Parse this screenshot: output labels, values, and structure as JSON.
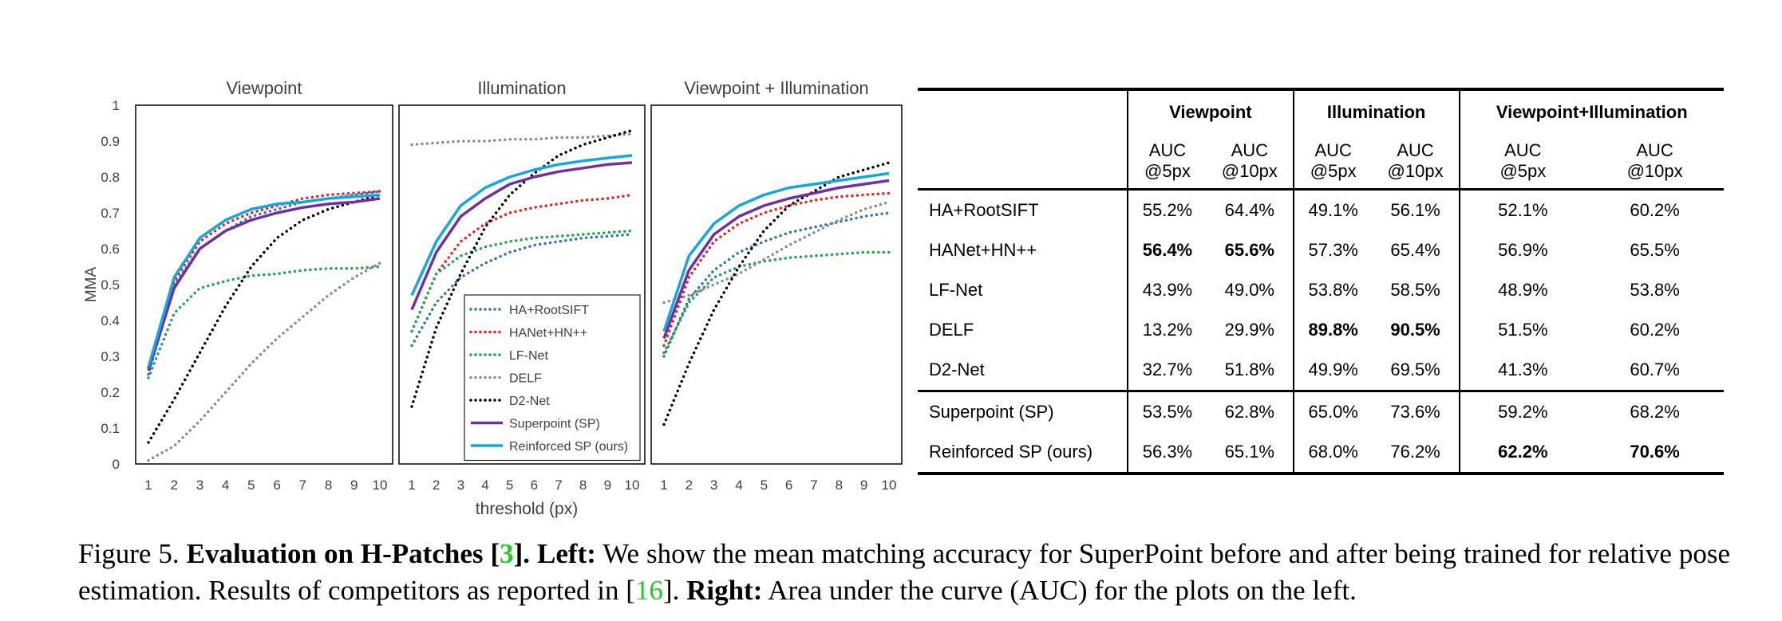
{
  "chart_data": {
    "type": "line",
    "xlabel": "threshold (px)",
    "ylabel": "MMA",
    "x": [
      1,
      2,
      3,
      4,
      5,
      6,
      7,
      8,
      9,
      10
    ],
    "ylim": [
      0,
      1
    ],
    "yticks": [
      "0",
      "0.1",
      "0.2",
      "0.3",
      "0.4",
      "0.5",
      "0.6",
      "0.7",
      "0.8",
      "0.9",
      "1"
    ],
    "legend": "bottom-right of middle panel",
    "panels": [
      {
        "title": "Viewpoint",
        "series": [
          {
            "name": "HA+RootSIFT",
            "values": [
              0.25,
              0.5,
              0.6,
              0.65,
              0.69,
              0.71,
              0.73,
              0.74,
              0.75,
              0.76
            ]
          },
          {
            "name": "HANet+HN++",
            "values": [
              0.27,
              0.51,
              0.62,
              0.67,
              0.7,
              0.72,
              0.74,
              0.75,
              0.755,
              0.76
            ]
          },
          {
            "name": "LF-Net",
            "values": [
              0.24,
              0.42,
              0.49,
              0.51,
              0.525,
              0.53,
              0.54,
              0.545,
              0.545,
              0.55
            ]
          },
          {
            "name": "DELF",
            "values": [
              0.01,
              0.05,
              0.12,
              0.2,
              0.28,
              0.35,
              0.41,
              0.47,
              0.52,
              0.56
            ]
          },
          {
            "name": "D2-Net",
            "values": [
              0.06,
              0.18,
              0.31,
              0.44,
              0.55,
              0.63,
              0.68,
              0.71,
              0.73,
              0.75
            ]
          },
          {
            "name": "Superpoint (SP)",
            "values": [
              0.26,
              0.49,
              0.6,
              0.65,
              0.68,
              0.7,
              0.715,
              0.725,
              0.73,
              0.74
            ]
          },
          {
            "name": "Reinforced SP (ours)",
            "values": [
              0.27,
              0.52,
              0.63,
              0.68,
              0.71,
              0.725,
              0.73,
              0.74,
              0.745,
              0.75
            ]
          }
        ]
      },
      {
        "title": "Illumination",
        "series": [
          {
            "name": "HA+RootSIFT",
            "values": [
              0.33,
              0.45,
              0.52,
              0.56,
              0.59,
              0.61,
              0.62,
              0.63,
              0.635,
              0.64
            ]
          },
          {
            "name": "HANet+HN++",
            "values": [
              0.37,
              0.53,
              0.62,
              0.67,
              0.7,
              0.715,
              0.725,
              0.735,
              0.74,
              0.75
            ]
          },
          {
            "name": "LF-Net",
            "values": [
              0.37,
              0.53,
              0.58,
              0.605,
              0.62,
              0.63,
              0.635,
              0.64,
              0.645,
              0.65
            ]
          },
          {
            "name": "DELF",
            "values": [
              0.89,
              0.895,
              0.9,
              0.9,
              0.905,
              0.905,
              0.91,
              0.91,
              0.915,
              0.92
            ]
          },
          {
            "name": "D2-Net",
            "values": [
              0.16,
              0.38,
              0.53,
              0.66,
              0.75,
              0.81,
              0.86,
              0.89,
              0.91,
              0.93
            ]
          },
          {
            "name": "Superpoint (SP)",
            "values": [
              0.43,
              0.59,
              0.69,
              0.74,
              0.78,
              0.8,
              0.815,
              0.825,
              0.835,
              0.84
            ]
          },
          {
            "name": "Reinforced SP (ours)",
            "values": [
              0.47,
              0.62,
              0.72,
              0.77,
              0.8,
              0.82,
              0.835,
              0.845,
              0.853,
              0.86
            ]
          }
        ]
      },
      {
        "title": "Viewpoint + Illumination",
        "series": [
          {
            "name": "HA+RootSIFT",
            "values": [
              0.3,
              0.46,
              0.54,
              0.59,
              0.62,
              0.645,
              0.66,
              0.675,
              0.69,
              0.7
            ]
          },
          {
            "name": "HANet+HN++",
            "values": [
              0.33,
              0.52,
              0.62,
              0.67,
              0.7,
              0.72,
              0.735,
              0.745,
              0.75,
              0.755
            ]
          },
          {
            "name": "LF-Net",
            "values": [
              0.31,
              0.45,
              0.52,
              0.55,
              0.565,
              0.575,
              0.58,
              0.585,
              0.59,
              0.59
            ]
          },
          {
            "name": "DELF",
            "values": [
              0.45,
              0.47,
              0.5,
              0.53,
              0.57,
              0.61,
              0.645,
              0.68,
              0.71,
              0.73
            ]
          },
          {
            "name": "D2-Net",
            "values": [
              0.11,
              0.28,
              0.43,
              0.55,
              0.65,
              0.72,
              0.76,
              0.8,
              0.82,
              0.84
            ]
          },
          {
            "name": "Superpoint (SP)",
            "values": [
              0.35,
              0.54,
              0.64,
              0.69,
              0.72,
              0.74,
              0.755,
              0.77,
              0.78,
              0.79
            ]
          },
          {
            "name": "Reinforced SP (ours)",
            "values": [
              0.37,
              0.58,
              0.67,
              0.72,
              0.75,
              0.77,
              0.78,
              0.79,
              0.8,
              0.81
            ]
          }
        ]
      }
    ]
  },
  "series_styles": [
    {
      "name": "HA+RootSIFT",
      "color": "#2e75b6",
      "style": "dotted"
    },
    {
      "name": "HANet+HN++",
      "color": "#e8221c",
      "style": "dotted"
    },
    {
      "name": "LF-Net",
      "color": "#1fa647",
      "style": "dotted"
    },
    {
      "name": "DELF",
      "color": "#8c8c8c",
      "style": "dotted"
    },
    {
      "name": "D2-Net",
      "color": "#000000",
      "style": "dotted"
    },
    {
      "name": "Superpoint (SP)",
      "color": "#7030a0",
      "style": "solid"
    },
    {
      "name": "Reinforced SP (ours)",
      "color": "#13a8e0",
      "style": "solid"
    }
  ],
  "table": {
    "groups": [
      "Viewpoint",
      "Illumination",
      "Viewpoint+Illumination"
    ],
    "sub": [
      "AUC\n@5px",
      "AUC\n@10px"
    ],
    "rows": [
      {
        "method": "HA+RootSIFT",
        "values": [
          "55.2%",
          "64.4%",
          "49.1%",
          "56.1%",
          "52.1%",
          "60.2%"
        ],
        "bold": []
      },
      {
        "method": "HANet+HN++",
        "values": [
          "56.4%",
          "65.6%",
          "57.3%",
          "65.4%",
          "56.9%",
          "65.5%"
        ],
        "bold": [
          0,
          1
        ]
      },
      {
        "method": "LF-Net",
        "values": [
          "43.9%",
          "49.0%",
          "53.8%",
          "58.5%",
          "48.9%",
          "53.8%"
        ],
        "bold": []
      },
      {
        "method": "DELF",
        "values": [
          "13.2%",
          "29.9%",
          "89.8%",
          "90.5%",
          "51.5%",
          "60.2%"
        ],
        "bold": [
          2,
          3
        ]
      },
      {
        "method": "D2-Net",
        "values": [
          "32.7%",
          "51.8%",
          "49.9%",
          "69.5%",
          "41.3%",
          "60.7%"
        ],
        "bold": []
      },
      {
        "method": "Superpoint (SP)",
        "values": [
          "53.5%",
          "62.8%",
          "65.0%",
          "73.6%",
          "59.2%",
          "68.2%"
        ],
        "bold": []
      },
      {
        "method": "Reinforced SP (ours)",
        "values": [
          "56.3%",
          "65.1%",
          "68.0%",
          "76.2%",
          "62.2%",
          "70.6%"
        ],
        "bold": [
          4,
          5
        ]
      }
    ]
  },
  "caption": {
    "prefix": "Figure 5. ",
    "bold_title": "Evaluation on H-Patches [",
    "ref1": "3",
    "bold_title_end": "].",
    "left_label": "Left:",
    "left_text": " We show the mean matching accuracy for SuperPoint before and after being trained for relative pose estimation. Results of competitors as reported in [",
    "ref2": "16",
    "left_text_end": "]. ",
    "right_label": "Right:",
    "right_text": " Area under the curve (AUC) for the plots on the left."
  }
}
